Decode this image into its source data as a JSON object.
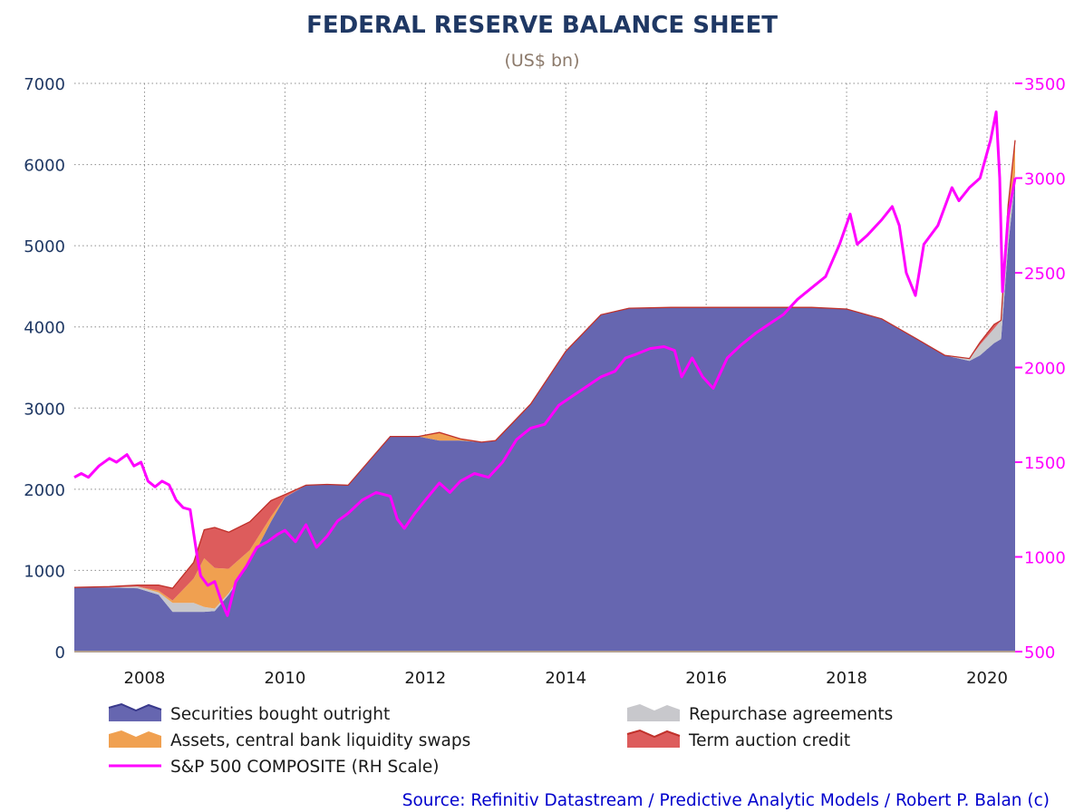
{
  "chart_data": {
    "type": "area",
    "title": "FEDERAL RESERVE BALANCE SHEET",
    "subtitle": "(US$ bn)",
    "source": "Source: Refinitiv Datastream / Predictive Analytic Models / Robert P. Balan (c)",
    "x_range": [
      2007.0,
      2020.4
    ],
    "x_ticks": [
      "2008",
      "2010",
      "2012",
      "2014",
      "2016",
      "2018",
      "2020"
    ],
    "y_left": {
      "range": [
        0,
        7000
      ],
      "ticks": [
        "0",
        "1000",
        "2000",
        "3000",
        "4000",
        "5000",
        "6000",
        "7000"
      ]
    },
    "y_right": {
      "range": [
        500,
        3500
      ],
      "ticks": [
        "500",
        "1000",
        "1500",
        "2000",
        "2500",
        "3000",
        "3500"
      ],
      "label": "RH Scale"
    },
    "grid": true,
    "legend_position": "bottom",
    "colors": {
      "securities": "#6666b0",
      "securities_edge": "#3a3a8c",
      "repo": "#c8c8cc",
      "swaps": "#f0a050",
      "tac": "#dd5c5c",
      "tac_edge": "#c0302a",
      "sp500": "#ff00ff",
      "left_axis_text": "#1f3864",
      "right_axis_text": "#ff00ff"
    },
    "x": [
      2007.0,
      2007.5,
      2007.9,
      2008.2,
      2008.4,
      2008.7,
      2008.85,
      2009.0,
      2009.2,
      2009.5,
      2009.8,
      2010.0,
      2010.3,
      2010.6,
      2010.9,
      2011.2,
      2011.5,
      2011.9,
      2012.2,
      2012.5,
      2012.8,
      2013.0,
      2013.5,
      2014.0,
      2014.5,
      2014.9,
      2015.5,
      2016.0,
      2016.5,
      2017.0,
      2017.5,
      2018.0,
      2018.5,
      2019.0,
      2019.4,
      2019.75,
      2019.9,
      2020.1,
      2020.2,
      2020.3,
      2020.4
    ],
    "series": [
      {
        "name": "Securities bought outright",
        "key": "securities",
        "values": [
          790,
          790,
          780,
          700,
          490,
          490,
          490,
          500,
          700,
          1100,
          1600,
          1900,
          2050,
          2060,
          2050,
          2350,
          2650,
          2650,
          2600,
          2600,
          2580,
          2600,
          3050,
          3700,
          4150,
          4230,
          4240,
          4240,
          4240,
          4240,
          4240,
          4220,
          4100,
          3850,
          3650,
          3580,
          3650,
          3800,
          3850,
          5000,
          5800
        ]
      },
      {
        "name": "Repurchase agreements",
        "key": "repo",
        "values": [
          0,
          0,
          20,
          30,
          110,
          110,
          60,
          30,
          20,
          0,
          0,
          0,
          0,
          0,
          0,
          0,
          0,
          0,
          0,
          0,
          0,
          0,
          0,
          0,
          0,
          0,
          0,
          0,
          0,
          0,
          0,
          0,
          0,
          0,
          0,
          30,
          130,
          180,
          230,
          200,
          100
        ]
      },
      {
        "name": "Assets, central bank liquidity swaps",
        "key": "swaps",
        "values": [
          0,
          0,
          0,
          20,
          30,
          300,
          600,
          500,
          300,
          150,
          60,
          5,
          0,
          0,
          0,
          0,
          0,
          0,
          100,
          20,
          0,
          0,
          0,
          0,
          0,
          0,
          0,
          0,
          0,
          0,
          0,
          0,
          0,
          0,
          0,
          0,
          0,
          0,
          0,
          300,
          400
        ]
      },
      {
        "name": "Term auction credit",
        "key": "tac",
        "values": [
          0,
          10,
          20,
          70,
          150,
          200,
          350,
          500,
          450,
          350,
          200,
          30,
          0,
          0,
          0,
          0,
          0,
          0,
          0,
          0,
          0,
          0,
          0,
          0,
          0,
          0,
          0,
          0,
          0,
          0,
          0,
          0,
          0,
          0,
          0,
          0,
          30,
          50,
          0,
          0,
          0
        ]
      }
    ],
    "sp500": {
      "name": "S&P 500 COMPOSITE (RH Scale)",
      "axis": "right",
      "x": [
        2007.0,
        2007.1,
        2007.2,
        2007.35,
        2007.5,
        2007.6,
        2007.75,
        2007.85,
        2007.95,
        2008.05,
        2008.15,
        2008.25,
        2008.35,
        2008.45,
        2008.55,
        2008.65,
        2008.75,
        2008.8,
        2008.9,
        2009.0,
        2009.1,
        2009.18,
        2009.3,
        2009.45,
        2009.6,
        2009.75,
        2009.9,
        2010.0,
        2010.15,
        2010.3,
        2010.45,
        2010.6,
        2010.75,
        2010.9,
        2011.1,
        2011.3,
        2011.5,
        2011.6,
        2011.7,
        2011.85,
        2012.0,
        2012.2,
        2012.35,
        2012.5,
        2012.7,
        2012.9,
        2013.1,
        2013.3,
        2013.5,
        2013.7,
        2013.9,
        2014.1,
        2014.3,
        2014.5,
        2014.7,
        2014.85,
        2015.0,
        2015.2,
        2015.4,
        2015.55,
        2015.65,
        2015.8,
        2015.95,
        2016.1,
        2016.3,
        2016.5,
        2016.7,
        2016.9,
        2017.1,
        2017.3,
        2017.5,
        2017.7,
        2017.9,
        2018.05,
        2018.15,
        2018.3,
        2018.5,
        2018.65,
        2018.75,
        2018.85,
        2018.98,
        2019.1,
        2019.3,
        2019.5,
        2019.6,
        2019.75,
        2019.9,
        2020.05,
        2020.13,
        2020.18,
        2020.22,
        2020.3,
        2020.4
      ],
      "values": [
        1420,
        1440,
        1420,
        1480,
        1520,
        1500,
        1540,
        1480,
        1500,
        1400,
        1370,
        1400,
        1380,
        1300,
        1260,
        1250,
        1000,
        900,
        850,
        870,
        760,
        690,
        870,
        950,
        1050,
        1080,
        1120,
        1140,
        1080,
        1170,
        1050,
        1110,
        1190,
        1230,
        1300,
        1340,
        1320,
        1200,
        1150,
        1230,
        1300,
        1390,
        1340,
        1400,
        1440,
        1420,
        1500,
        1620,
        1680,
        1700,
        1800,
        1850,
        1900,
        1950,
        1980,
        2050,
        2070,
        2100,
        2110,
        2090,
        1950,
        2050,
        1950,
        1890,
        2050,
        2120,
        2180,
        2230,
        2280,
        2360,
        2420,
        2480,
        2650,
        2810,
        2650,
        2700,
        2780,
        2850,
        2750,
        2500,
        2380,
        2650,
        2750,
        2950,
        2880,
        2950,
        3000,
        3200,
        3350,
        3000,
        2400,
        2800,
        3000
      ]
    },
    "legend": [
      {
        "label": "Securities bought outright",
        "key": "securities"
      },
      {
        "label": "Repurchase agreements",
        "key": "repo"
      },
      {
        "label": "Assets, central bank liquidity swaps",
        "key": "swaps"
      },
      {
        "label": "Term auction credit",
        "key": "tac"
      },
      {
        "label": "S&P 500 COMPOSITE (RH Scale)",
        "key": "sp500"
      }
    ]
  }
}
